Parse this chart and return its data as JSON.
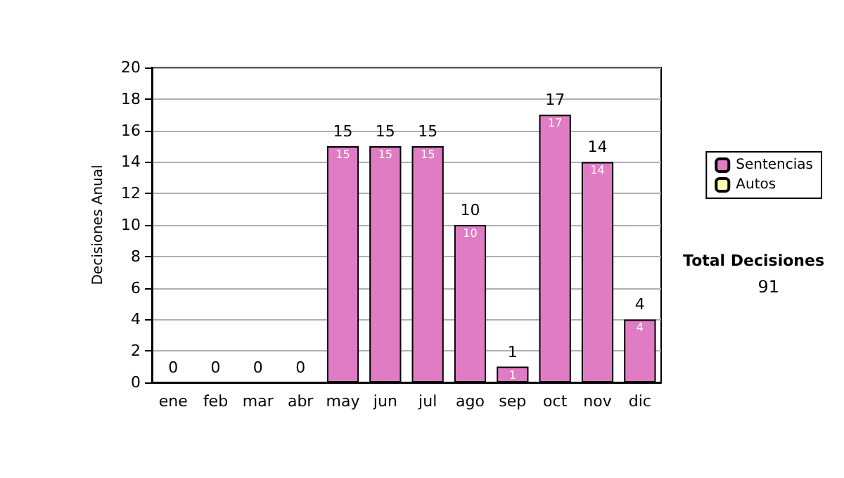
{
  "chart_data": {
    "type": "bar",
    "ylabel": "Decisiones Anual",
    "categories": [
      "ene",
      "feb",
      "mar",
      "abr",
      "may",
      "jun",
      "jul",
      "ago",
      "sep",
      "oct",
      "nov",
      "dic"
    ],
    "series": [
      {
        "name": "Sentencias",
        "color": "#e07cc4",
        "values": [
          0,
          0,
          0,
          0,
          15,
          15,
          15,
          10,
          1,
          17,
          14,
          4
        ],
        "value_labels": [
          null,
          null,
          null,
          null,
          "15",
          "15",
          "15",
          "10",
          "1",
          "17",
          "14",
          "4"
        ]
      },
      {
        "name": "Autos",
        "color": "#ffffb0",
        "values": [
          0,
          0,
          0,
          0,
          0,
          0,
          0,
          0,
          0,
          0,
          0,
          0
        ]
      }
    ],
    "stacked": true,
    "totals": [
      "0",
      "0",
      "0",
      "0",
      "15",
      "15",
      "15",
      "10",
      "1",
      "17",
      "14",
      "4"
    ],
    "ylim": [
      0,
      20
    ],
    "yticks": [
      0,
      2,
      4,
      6,
      8,
      10,
      12,
      14,
      16,
      18,
      20
    ],
    "grid": "y",
    "legend": "right",
    "annotations": [
      "Total Decisiones",
      "91"
    ]
  }
}
